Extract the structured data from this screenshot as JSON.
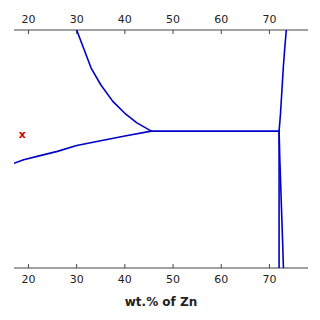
{
  "chart_data": {
    "type": "line",
    "xlabel": "wt.% of Zn",
    "xlim": [
      17,
      78
    ],
    "ylim": [
      0,
      1
    ],
    "xticks": [
      20,
      30,
      40,
      50,
      60,
      70
    ],
    "tick_labels": "x",
    "grid": false,
    "series": [
      {
        "x": [
          30.0,
          31.5,
          33.0,
          35.0,
          37.5,
          40.0,
          42.5,
          45.5
        ],
        "values": [
          1.0,
          0.92,
          0.84,
          0.77,
          0.7,
          0.65,
          0.61,
          0.575
        ],
        "color": "#0000cc"
      },
      {
        "x": [
          17.0,
          19.0,
          22.0,
          26.0,
          30.0,
          35.0,
          40.0,
          45.5
        ],
        "values": [
          0.44,
          0.455,
          0.47,
          0.49,
          0.515,
          0.535,
          0.555,
          0.575
        ],
        "color": "#0000cc"
      },
      {
        "x": [
          45.5,
          72.0
        ],
        "values": [
          0.575,
          0.575
        ],
        "color": "#0000cc"
      },
      {
        "x": [
          72.0,
          72.3,
          72.6,
          72.9,
          73.2,
          73.5
        ],
        "values": [
          0.575,
          0.65,
          0.75,
          0.85,
          0.93,
          1.0
        ],
        "color": "#0000cc"
      },
      {
        "x": [
          72.0,
          72.15,
          72.35,
          72.55,
          72.75,
          72.9
        ],
        "values": [
          0.575,
          0.46,
          0.34,
          0.22,
          0.1,
          0.0
        ],
        "color": "#0000cc"
      },
      {
        "x": [
          72.0,
          72.0
        ],
        "values": [
          0.0,
          0.575
        ],
        "color": "#0000cc"
      }
    ],
    "annotations": [
      {
        "text": "x",
        "x": 18.0,
        "y": 0.56,
        "color": "#cc0000"
      }
    ]
  }
}
